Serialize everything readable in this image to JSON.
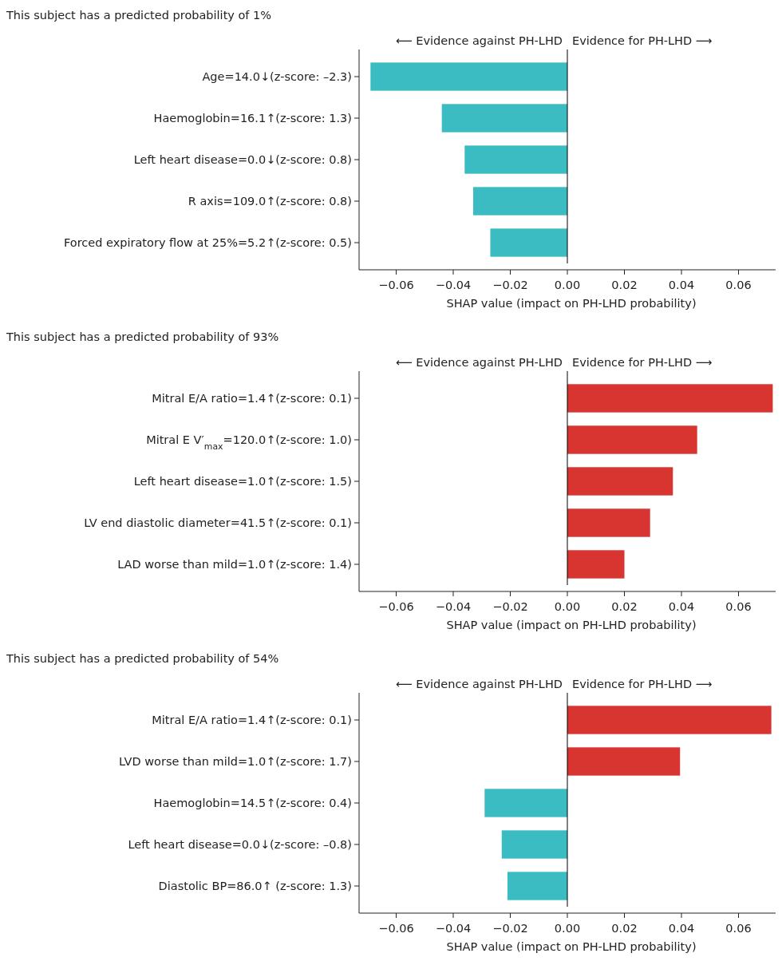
{
  "chart_data": [
    {
      "type": "bar",
      "orientation": "horizontal",
      "title": "This subject has a predicted probability of 1%",
      "xlabel": "SHAP value (impact on PH-LHD probability)",
      "categories": [
        "Age=14.0↓(z-score: –2.3)",
        "Haemoglobin=16.1↑(z-score: 1.3)",
        "Left heart disease=0.0↓(z-score: 0.8)",
        "R axis=109.0↑(z-score: 0.8)",
        "Forced expiratory flow at 25%=5.2↑(z-score: 0.5)"
      ],
      "values": [
        -0.069,
        -0.044,
        -0.036,
        -0.033,
        -0.027
      ],
      "colors": [
        "#3bbcc2",
        "#3bbcc2",
        "#3bbcc2",
        "#3bbcc2",
        "#3bbcc2"
      ],
      "xlim": [
        -0.073,
        0.073
      ],
      "xticks": [
        {
          "value": -0.06,
          "label": "−0.06"
        },
        {
          "value": -0.04,
          "label": "−0.04"
        },
        {
          "value": -0.02,
          "label": "−0.02"
        },
        {
          "value": 0,
          "label": "0.00"
        },
        {
          "value": 0.02,
          "label": "0.02"
        },
        {
          "value": 0.04,
          "label": "0.04"
        },
        {
          "value": 0.06,
          "label": "0.06"
        }
      ],
      "ref_lines": [
        {
          "axis": "x",
          "value": 0,
          "color": "#000000"
        }
      ],
      "annotations": [
        "⟵ Evidence against PH-LHD",
        "Evidence for PH-LHD ⟶"
      ],
      "grid": false
    },
    {
      "type": "bar",
      "orientation": "horizontal",
      "title": "This subject has a predicted probability of 93%",
      "xlabel": "SHAP value (impact on PH-LHD probability)",
      "categories": [
        "Mitral E/A ratio=1.4↑(z-score: 0.1)",
        "Mitral E V′$_{max}$=120.0↑(z-score: 1.0)",
        "Left heart disease=1.0↑(z-score: 1.5)",
        "LV end diastolic diameter=41.5↑(z-score: 0.1)",
        "LAD worse than mild=1.0↑(z-score: 1.4)"
      ],
      "values": [
        0.072,
        0.0455,
        0.037,
        0.029,
        0.02
      ],
      "colors": [
        "#d83430",
        "#d83430",
        "#d83430",
        "#d83430",
        "#d83430"
      ],
      "xlim": [
        -0.073,
        0.073
      ],
      "xticks": [
        {
          "value": -0.06,
          "label": "−0.06"
        },
        {
          "value": -0.04,
          "label": "−0.04"
        },
        {
          "value": -0.02,
          "label": "−0.02"
        },
        {
          "value": 0,
          "label": "0.00"
        },
        {
          "value": 0.02,
          "label": "0.02"
        },
        {
          "value": 0.04,
          "label": "0.04"
        },
        {
          "value": 0.06,
          "label": "0.06"
        }
      ],
      "ref_lines": [
        {
          "axis": "x",
          "value": 0,
          "color": "#000000"
        }
      ],
      "annotations": [
        "⟵ Evidence against PH-LHD",
        "Evidence for PH-LHD ⟶"
      ],
      "grid": false
    },
    {
      "type": "bar",
      "orientation": "horizontal",
      "title": "This subject has a predicted probability of 54%",
      "xlabel": "SHAP value (impact on PH-LHD probability)",
      "categories": [
        "Mitral E/A ratio=1.4↑(z-score: 0.1)",
        "LVD worse than mild=1.0↑(z-score: 1.7)",
        "Haemoglobin=14.5↑(z-score: 0.4)",
        "Left heart disease=0.0↓(z-score: –0.8)",
        "Diastolic BP=86.0↑ (z-score: 1.3)"
      ],
      "values": [
        0.0715,
        0.0395,
        -0.029,
        -0.023,
        -0.021
      ],
      "colors": [
        "#d83430",
        "#d83430",
        "#3bbcc2",
        "#3bbcc2",
        "#3bbcc2"
      ],
      "xlim": [
        -0.073,
        0.073
      ],
      "xticks": [
        {
          "value": -0.06,
          "label": "−0.06"
        },
        {
          "value": -0.04,
          "label": "−0.04"
        },
        {
          "value": -0.02,
          "label": "−0.02"
        },
        {
          "value": 0,
          "label": "0.00"
        },
        {
          "value": 0.02,
          "label": "0.02"
        },
        {
          "value": 0.04,
          "label": "0.04"
        },
        {
          "value": 0.06,
          "label": "0.06"
        }
      ],
      "ref_lines": [
        {
          "axis": "x",
          "value": 0,
          "color": "#000000"
        }
      ],
      "annotations": [
        "⟵ Evidence against PH-LHD",
        "Evidence for PH-LHD ⟶"
      ],
      "grid": false
    }
  ]
}
